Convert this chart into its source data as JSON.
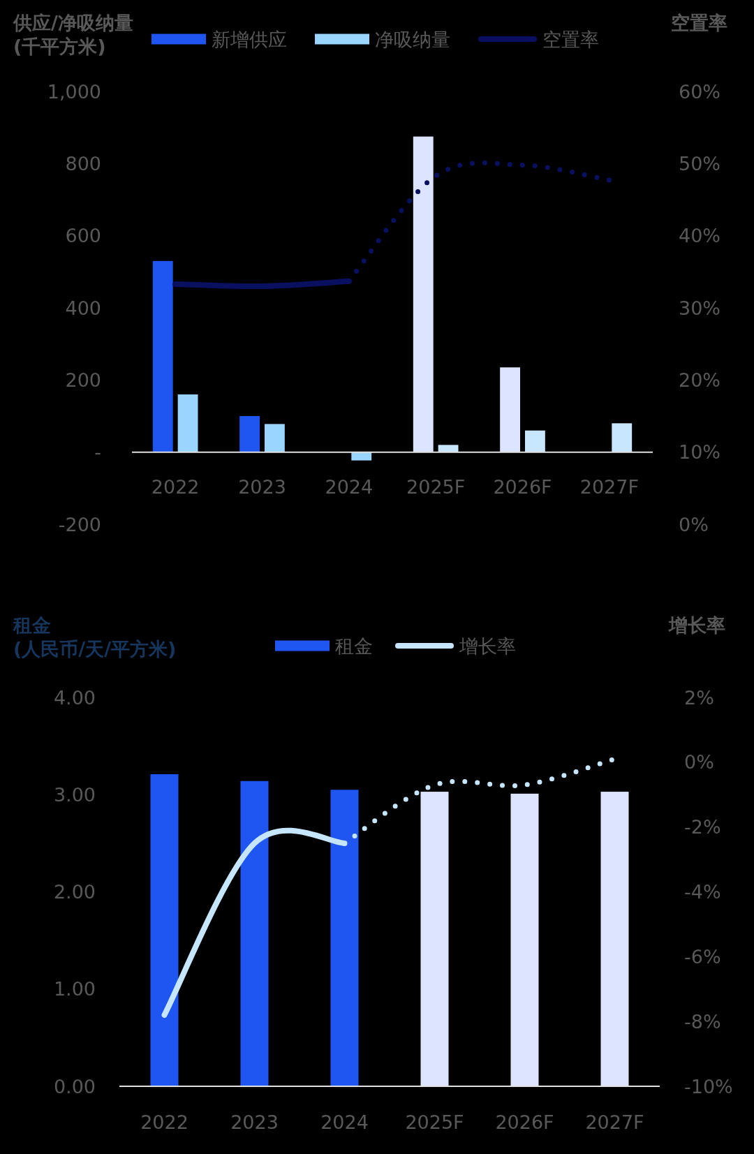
{
  "chart_data": [
    {
      "type": "bar",
      "categories": [
        "2022",
        "2023",
        "2024",
        "2025F",
        "2026F",
        "2027F"
      ],
      "ylabel": "供应/净吸纳量\n(千平方米)",
      "y2label": "空置率",
      "ylim": [
        -200,
        1000
      ],
      "yticks": [
        -200,
        {
          "value": 0,
          "label": "-"
        },
        200,
        400,
        600,
        800,
        {
          "value": 1000,
          "label": "1,000"
        }
      ],
      "y2lim": [
        0,
        60
      ],
      "y2ticks": [
        {
          "value": 0,
          "label": "0%"
        },
        {
          "value": 10,
          "label": "10%"
        },
        {
          "value": 20,
          "label": "20%"
        },
        {
          "value": 30,
          "label": "30%"
        },
        {
          "value": 40,
          "label": "40%"
        },
        {
          "value": 50,
          "label": "50%"
        },
        {
          "value": 60,
          "label": "60%"
        }
      ],
      "legend": "top",
      "series": [
        {
          "name": "新增供应",
          "color": "#1f55f0",
          "colors": [
            "#1f55f0",
            "#1f55f0",
            null,
            "#dde4ff",
            "#dde4ff",
            null
          ],
          "values": [
            530,
            100,
            null,
            875,
            235,
            null
          ]
        },
        {
          "name": "净吸纳量",
          "color": "#99d5ff",
          "colors": [
            "#99d5ff",
            "#99d5ff",
            "#99d5ff",
            "#c8e7ff",
            "#c8e7ff",
            "#c8e7ff"
          ],
          "values": [
            160,
            78,
            -23,
            20,
            60,
            80
          ]
        },
        {
          "name": "空置率",
          "type": "line",
          "axis": "y2",
          "color": "#0a1060",
          "line_style": "solid",
          "values": [
            33.3,
            33,
            33.7,
            null,
            null,
            null
          ]
        },
        {
          "type": "line",
          "axis": "y2",
          "color": "#0a1060",
          "line_style": "dotted",
          "values": [
            null,
            null,
            33.7,
            48.3,
            49.8,
            47.7
          ]
        }
      ]
    },
    {
      "type": "bar",
      "categories": [
        "2022",
        "2023",
        "2024",
        "2025F",
        "2026F",
        "2027F"
      ],
      "ylabel": "租金\n(人民币/天/平方米)",
      "y2label": "增长率",
      "ylim": [
        0,
        4
      ],
      "yticks": [
        {
          "value": 0,
          "label": "0.00"
        },
        {
          "value": 1,
          "label": "1.00"
        },
        {
          "value": 2,
          "label": "2.00"
        },
        {
          "value": 3,
          "label": "3.00"
        },
        {
          "value": 4,
          "label": "4.00"
        }
      ],
      "y2lim": [
        -10,
        2
      ],
      "y2ticks": [
        {
          "value": -10,
          "label": "-10%"
        },
        {
          "value": -8,
          "label": "-8%"
        },
        {
          "value": -6,
          "label": "-6%"
        },
        {
          "value": -4,
          "label": "-4%"
        },
        {
          "value": -2,
          "label": "-2%"
        },
        {
          "value": 0,
          "label": "0%"
        },
        {
          "value": 2,
          "label": "2%"
        }
      ],
      "legend": "top",
      "series": [
        {
          "name": "租金",
          "color": "#1f55f0",
          "colors": [
            "#1f55f0",
            "#1f55f0",
            "#1f55f0",
            "#dde4ff",
            "#dde4ff",
            "#dde4ff"
          ],
          "values": [
            3.21,
            3.14,
            3.05,
            3.03,
            3.01,
            3.03
          ]
        },
        {
          "name": "增长率",
          "type": "line",
          "axis": "y2",
          "color": "#c6e6ff",
          "line_style": "solid",
          "values": [
            -7.8,
            -2.5,
            -2.5,
            null,
            null,
            null
          ]
        },
        {
          "type": "line",
          "axis": "y2",
          "color": "#c6e6ff",
          "line_style": "dotted",
          "values": [
            null,
            null,
            -2.5,
            -0.7,
            -0.7,
            0.1
          ]
        }
      ]
    }
  ]
}
